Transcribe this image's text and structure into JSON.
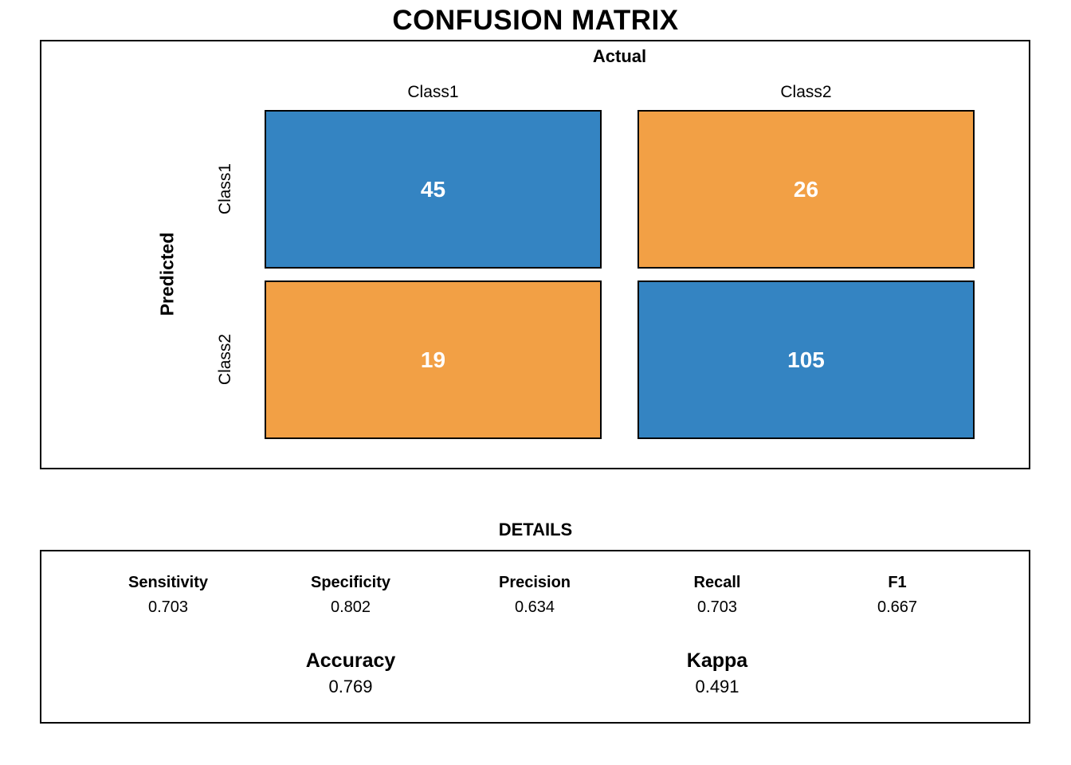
{
  "title": "CONFUSION MATRIX",
  "colors": {
    "blue": "#3484C2",
    "orange": "#F2A045",
    "cell_border": "#000000",
    "cell_text": "#FFFFFF",
    "background": "#FFFFFF"
  },
  "matrix": {
    "x_axis_label": "Actual",
    "y_axis_label": "Predicted",
    "col_labels": [
      "Class1",
      "Class2"
    ],
    "row_labels": [
      "Class1",
      "Class2"
    ],
    "cells": [
      {
        "row": "Class1",
        "col": "Class1",
        "value": "45",
        "color_key": "blue"
      },
      {
        "row": "Class1",
        "col": "Class2",
        "value": "26",
        "color_key": "orange"
      },
      {
        "row": "Class2",
        "col": "Class1",
        "value": "19",
        "color_key": "orange"
      },
      {
        "row": "Class2",
        "col": "Class2",
        "value": "105",
        "color_key": "blue"
      }
    ]
  },
  "details": {
    "title": "DETAILS",
    "metrics": [
      {
        "label": "Sensitivity",
        "value": "0.703"
      },
      {
        "label": "Specificity",
        "value": "0.802"
      },
      {
        "label": "Precision",
        "value": "0.634"
      },
      {
        "label": "Recall",
        "value": "0.703"
      },
      {
        "label": "F1",
        "value": "0.667"
      }
    ],
    "summary": [
      {
        "label": "Accuracy",
        "value": "0.769"
      },
      {
        "label": "Kappa",
        "value": "0.491"
      }
    ]
  },
  "chart_data": {
    "type": "heatmap",
    "title": "CONFUSION MATRIX",
    "xlabel": "Actual",
    "ylabel": "Predicted",
    "x_categories": [
      "Class1",
      "Class2"
    ],
    "y_categories": [
      "Class1",
      "Class2"
    ],
    "values": [
      [
        45,
        26
      ],
      [
        19,
        105
      ]
    ],
    "cell_colors": [
      [
        "#3484C2",
        "#F2A045"
      ],
      [
        "#F2A045",
        "#3484C2"
      ]
    ],
    "value_text_color": "#FFFFFF",
    "grid": false,
    "legend": false,
    "stats": {
      "Sensitivity": 0.703,
      "Specificity": 0.802,
      "Precision": 0.634,
      "Recall": 0.703,
      "F1": 0.667,
      "Accuracy": 0.769,
      "Kappa": 0.491
    }
  }
}
